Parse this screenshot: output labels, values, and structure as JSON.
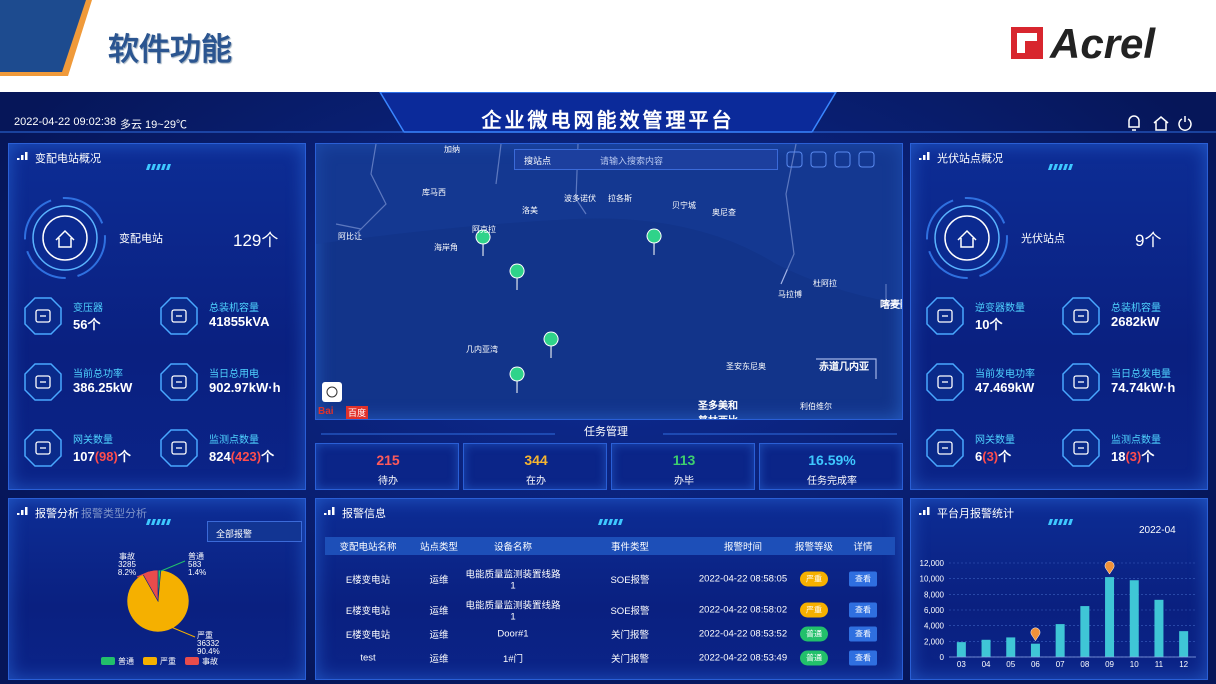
{
  "header": {
    "title": "软件功能",
    "logo": "Acrel"
  },
  "topbar": {
    "datetime": "2022-04-22 09:02:38",
    "weather": "多云 19~29℃",
    "title": "企业微电网能效管理平台"
  },
  "substation": {
    "title": "变配电站概况",
    "main_label": "变配电站",
    "main_value": "129个",
    "items": [
      {
        "label": "变压器",
        "value": "56个"
      },
      {
        "label": "总装机容量",
        "value": "41855kVA"
      },
      {
        "label": "当前总功率",
        "value": "386.25kW"
      },
      {
        "label": "当日总用电",
        "value": "902.97kW·h"
      },
      {
        "label": "网关数量",
        "value": "107",
        "sub": "(98)",
        "unit": "个"
      },
      {
        "label": "监测点数量",
        "value": "824",
        "sub": "(423)",
        "unit": "个"
      }
    ]
  },
  "pv": {
    "title": "光伏站点概况",
    "main_label": "光伏站点",
    "main_value": "9个",
    "items": [
      {
        "label": "逆变器数量",
        "value": "10个"
      },
      {
        "label": "总装机容量",
        "value": "2682kW"
      },
      {
        "label": "当前发电功率",
        "value": "47.469kW"
      },
      {
        "label": "当日总发电量",
        "value": "74.74kW·h"
      },
      {
        "label": "网关数量",
        "value": "6",
        "sub": "(3)",
        "unit": "个"
      },
      {
        "label": "监测点数量",
        "value": "18",
        "sub": "(3)",
        "unit": "个"
      }
    ]
  },
  "map": {
    "station_select": "搜站点",
    "search_placeholder": "请输入搜索内容",
    "logo_left": "Bai",
    "logo_right": "百度",
    "labels": [
      "加纳",
      "库马西",
      "洛美",
      "波多诺伏",
      "拉各斯",
      "贝宁城",
      "奥尼查",
      "阿克拉",
      "海岸角",
      "阿比让",
      "杜阿拉",
      "马拉博",
      "喀麦隆",
      "几内亚湾",
      "圣安东尼奥",
      "赤道几内亚",
      "圣多美和普林西比",
      "利伯维尔"
    ]
  },
  "tasks": {
    "title": "任务管理",
    "items": [
      {
        "value": "215",
        "label": "待办"
      },
      {
        "value": "344",
        "label": "在办"
      },
      {
        "value": "113",
        "label": "办毕"
      },
      {
        "value": "16.59%",
        "label": "任务完成率"
      }
    ]
  },
  "alarm_analysis": {
    "title": "报警分析",
    "tab": "报警类型分析",
    "filter": "全部报警"
  },
  "alarm_table": {
    "title": "报警信息",
    "columns": [
      "变配电站名称",
      "站点类型",
      "设备名称",
      "事件类型",
      "报警时间",
      "报警等级",
      "详情"
    ],
    "rows": [
      [
        "E楼变电站",
        "运维",
        "电能质量监测装置线路1",
        "SOE报警",
        "2022-04-22 08:58:05",
        "严重",
        "查看"
      ],
      [
        "E楼变电站",
        "运维",
        "电能质量监测装置线路1",
        "SOE报警",
        "2022-04-22 08:58:02",
        "严重",
        "查看"
      ],
      [
        "E楼变电站",
        "运维",
        "Door#1",
        "关门报警",
        "2022-04-22 08:53:52",
        "普通",
        "查看"
      ],
      [
        "test",
        "运维",
        "1#门",
        "关门报警",
        "2022-04-22 08:53:49",
        "普通",
        "查看"
      ]
    ]
  },
  "chart_data": [
    {
      "type": "pie",
      "categories": [
        "普通",
        "严重",
        "事故"
      ],
      "values": [
        583,
        36332,
        3285
      ],
      "percent_labels": [
        "1.4%",
        "90.4%",
        "8.2%"
      ],
      "colors": [
        "#22c06b",
        "#f5b000",
        "#e84c4c"
      ]
    },
    {
      "type": "bar",
      "title": "平台月报警统计",
      "subtitle": "2022-04",
      "categories": [
        "03",
        "04",
        "05",
        "06",
        "07",
        "08",
        "09",
        "10",
        "11",
        "12"
      ],
      "values": [
        1900,
        2200,
        2500,
        1700,
        4200,
        6500,
        10200,
        9800,
        7300,
        3300
      ],
      "color": "#3fc6d6",
      "ylim": [
        0,
        12000
      ],
      "yticks": [
        0,
        {
          "value": 2000,
          "label": "2,000"
        },
        {
          "value": 4000,
          "label": "4,000"
        },
        {
          "value": 6000,
          "label": "6,000"
        },
        {
          "value": 8000,
          "label": "8,000"
        },
        {
          "value": 10000,
          "label": "10,000"
        },
        {
          "value": 12000,
          "label": "12,000"
        }
      ],
      "grid": true
    }
  ]
}
